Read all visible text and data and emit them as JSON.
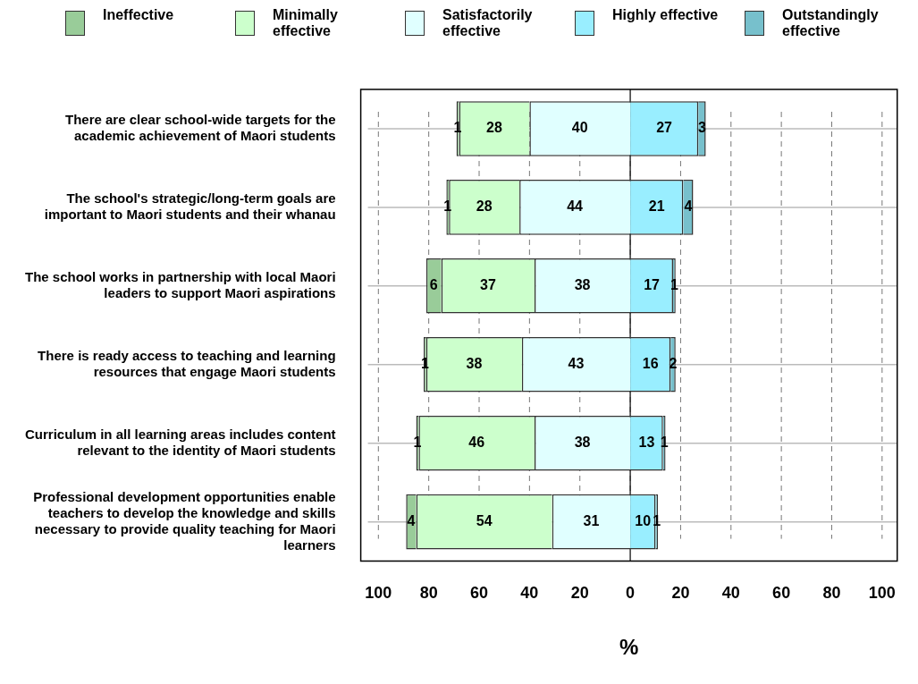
{
  "chart_data": {
    "type": "bar",
    "orientation": "horizontal",
    "xlabel": "%",
    "categories": [
      "There are clear school-wide targets for the academic achievement of Maori students",
      "The school's strategic/long-term goals are important to Maori students and their whanau",
      "The school works in partnership with local Maori leaders to support Maori aspirations",
      "There is ready access to teaching and learning resources that engage Maori students",
      "Curriculum in all learning areas includes content relevant to the identity of Maori students",
      "Professional development opportunities enable teachers to develop the knowledge and skills necessary to provide quality teaching for Maori learners"
    ],
    "series": [
      {
        "name": "Ineffective",
        "color": "#99cc99",
        "values": [
          1,
          1,
          6,
          1,
          1,
          4
        ],
        "base": [
          -69,
          -73,
          -81,
          -82,
          -85,
          -89
        ]
      },
      {
        "name": "Minimally effective",
        "color": "#ccffcc",
        "values": [
          28,
          28,
          37,
          38,
          46,
          54
        ],
        "base": [
          -68,
          -72,
          -75,
          -81,
          -84,
          -85
        ]
      },
      {
        "name": "Satisfactorily effective",
        "color": "#e0ffff",
        "values": [
          40,
          44,
          38,
          43,
          38,
          31
        ],
        "base": [
          -40,
          -44,
          -38,
          -43,
          -38,
          -31
        ]
      },
      {
        "name": "Highly effective",
        "color": "#99eeff",
        "values": [
          27,
          21,
          17,
          16,
          13,
          10
        ],
        "base": [
          0,
          0,
          0,
          0,
          0,
          0
        ]
      },
      {
        "name": "Outstandingly effective",
        "color": "#77c0cc",
        "values": [
          3,
          4,
          1,
          2,
          1,
          1
        ],
        "base": [
          27,
          21,
          17,
          16,
          13,
          10
        ]
      }
    ],
    "data_labels": true,
    "xlim": [
      -107,
      106
    ],
    "xticks": [
      {
        "value": -100,
        "label": "100"
      },
      {
        "value": -80,
        "label": "80"
      },
      {
        "value": -60,
        "label": "60"
      },
      {
        "value": -40,
        "label": "40"
      },
      {
        "value": -20,
        "label": "20"
      },
      0,
      20,
      40,
      60,
      80,
      100
    ],
    "ref_lines": [
      {
        "axis": "x",
        "value": 0,
        "color": "#000000",
        "line_style": "solid"
      }
    ],
    "grid": true,
    "legend": "top"
  }
}
